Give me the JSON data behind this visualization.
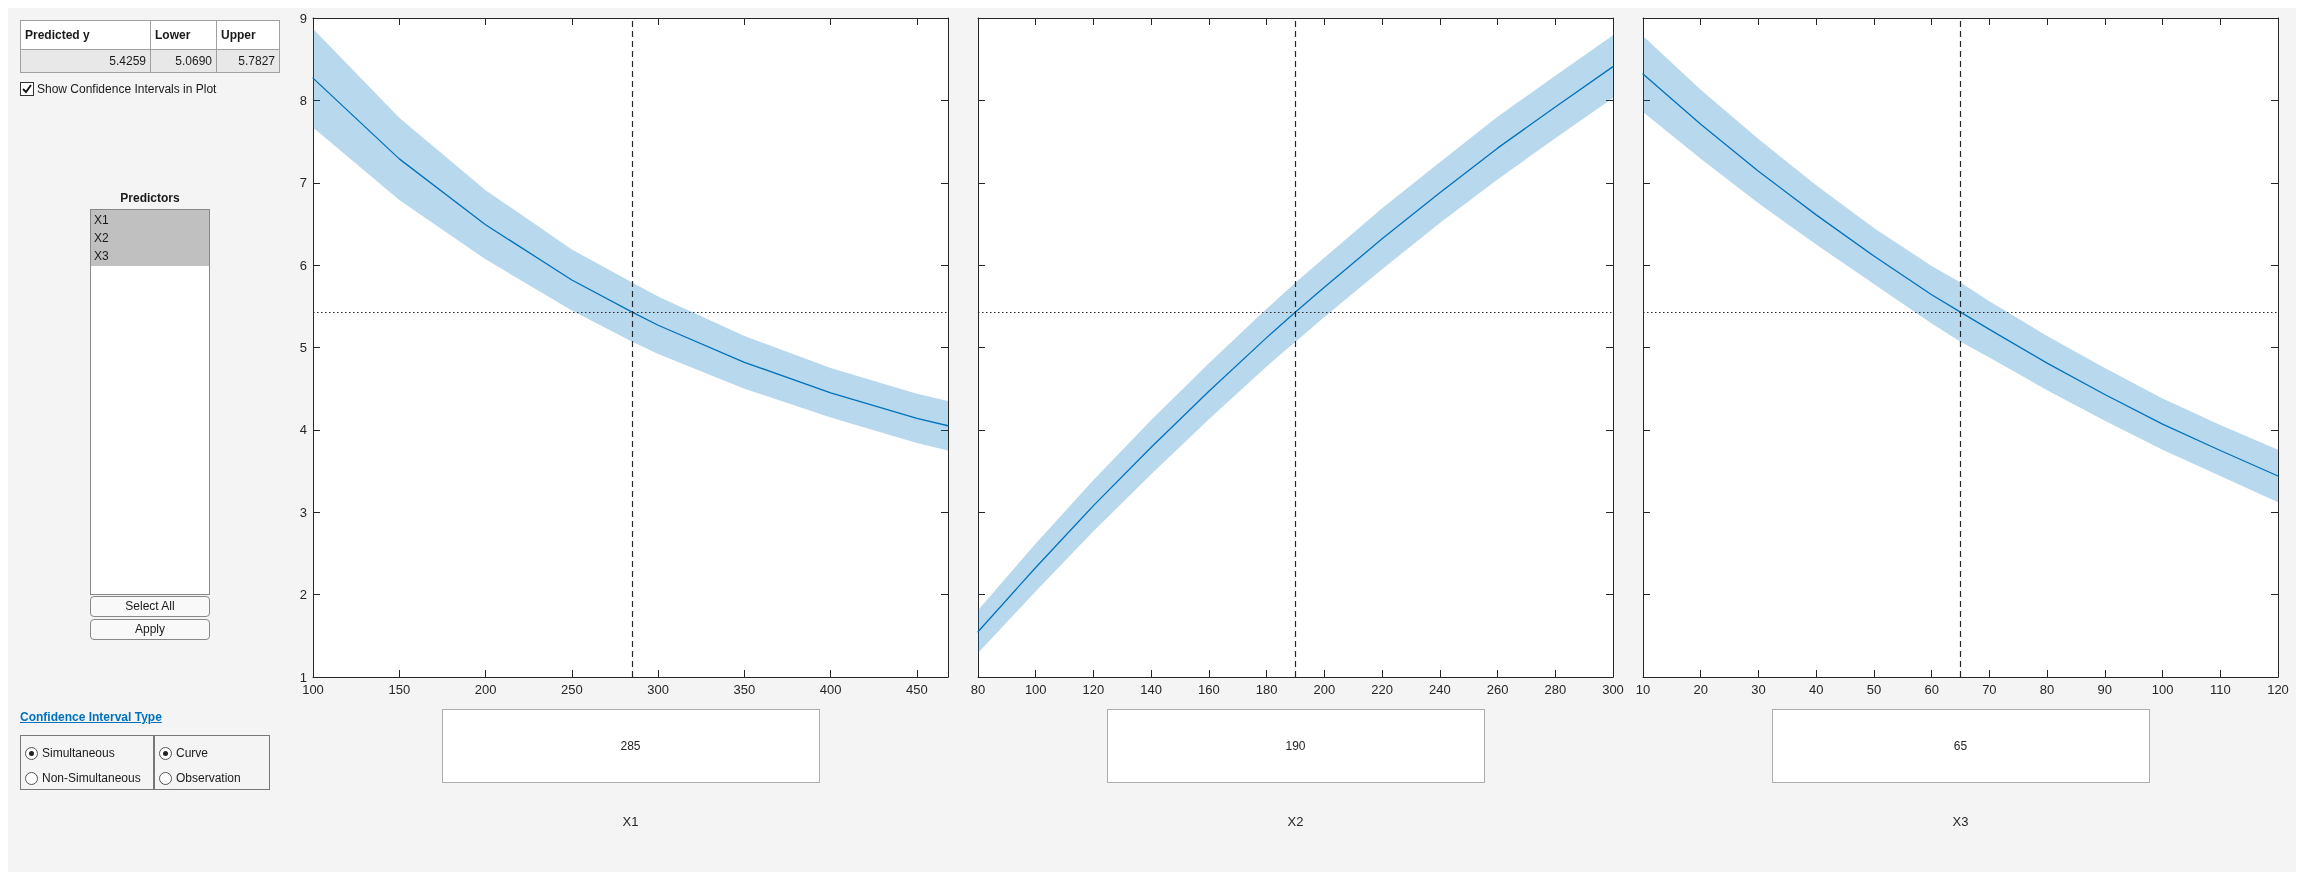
{
  "chart_data": [
    {
      "type": "other",
      "annotations": [
        "Predicted y",
        "Lower",
        "Upper",
        "5.4259",
        "5.0690",
        "5.7827",
        "Show Confidence Intervals in Plot",
        "Predictors",
        "X1",
        "X2",
        "X3",
        "Select All",
        "Apply",
        "Confidence Interval Type",
        "Simultaneous",
        "Non-Simultaneous",
        "Curve",
        "Observation"
      ]
    },
    {
      "type": "line",
      "xlabel": "X1",
      "marker": "none",
      "line_style": "solid",
      "xlim": [
        100,
        468
      ],
      "xticks": [
        100,
        150,
        200,
        250,
        300,
        350,
        400,
        450
      ],
      "ylim": [
        1,
        9
      ],
      "yticks": [
        1,
        2,
        3,
        4,
        5,
        6,
        7,
        8,
        9
      ],
      "series": [
        {
          "color": "#0072bd",
          "x": [
            100,
            150,
            200,
            250,
            285,
            300,
            350,
            400,
            450,
            468
          ],
          "values": [
            8.27,
            7.29,
            6.49,
            5.82,
            5.43,
            5.27,
            4.82,
            4.45,
            4.14,
            4.05
          ],
          "lower": [
            7.67,
            6.79,
            6.07,
            5.45,
            5.07,
            4.92,
            4.5,
            4.15,
            3.84,
            3.75
          ],
          "upper": [
            8.87,
            7.79,
            6.91,
            6.19,
            5.79,
            5.62,
            5.14,
            4.75,
            4.44,
            4.35
          ]
        }
      ],
      "ref_lines": [
        {
          "axis": "x",
          "value": 285,
          "label": "285",
          "color": "#262626",
          "line_style": "dashed"
        },
        {
          "axis": "y",
          "value": 5.4259,
          "color": "#262626",
          "line_style": "dotted"
        }
      ]
    },
    {
      "type": "line",
      "xlabel": "X2",
      "marker": "none",
      "line_style": "solid",
      "tick_labels": "x",
      "xlim": [
        80,
        300
      ],
      "xticks": [
        80,
        100,
        120,
        140,
        160,
        180,
        200,
        220,
        240,
        260,
        280,
        300
      ],
      "ylim": [
        1,
        9
      ],
      "yticks": [
        1,
        2,
        3,
        4,
        5,
        6,
        7,
        8,
        9
      ],
      "series": [
        {
          "color": "#0072bd",
          "x": [
            80,
            100,
            120,
            140,
            160,
            180,
            190,
            200,
            220,
            240,
            260,
            280,
            300
          ],
          "values": [
            1.55,
            2.33,
            3.08,
            3.79,
            4.47,
            5.12,
            5.43,
            5.73,
            6.32,
            6.88,
            7.42,
            7.92,
            8.41
          ],
          "lower": [
            1.29,
            2.04,
            2.77,
            3.46,
            4.13,
            4.77,
            5.07,
            5.37,
            5.95,
            6.51,
            7.04,
            7.54,
            8.03
          ],
          "upper": [
            1.81,
            2.62,
            3.39,
            4.12,
            4.81,
            5.47,
            5.79,
            6.09,
            6.69,
            7.25,
            7.8,
            8.3,
            8.79
          ]
        }
      ],
      "ref_lines": [
        {
          "axis": "x",
          "value": 190,
          "label": "190",
          "color": "#262626",
          "line_style": "dashed"
        },
        {
          "axis": "y",
          "value": 5.4259,
          "color": "#262626",
          "line_style": "dotted"
        }
      ]
    },
    {
      "type": "line",
      "xlabel": "X3",
      "marker": "none",
      "line_style": "solid",
      "tick_labels": "x",
      "xlim": [
        10,
        120
      ],
      "xticks": [
        10,
        20,
        30,
        40,
        50,
        60,
        70,
        80,
        90,
        100,
        110,
        120
      ],
      "ylim": [
        1,
        9
      ],
      "yticks": [
        1,
        2,
        3,
        4,
        5,
        6,
        7,
        8,
        9
      ],
      "series": [
        {
          "color": "#0072bd",
          "x": [
            10,
            20,
            30,
            40,
            50,
            60,
            65,
            70,
            80,
            90,
            100,
            110,
            120
          ],
          "values": [
            8.32,
            7.71,
            7.14,
            6.61,
            6.11,
            5.64,
            5.43,
            5.22,
            4.81,
            4.43,
            4.07,
            3.75,
            3.44
          ],
          "lower": [
            7.86,
            7.29,
            6.75,
            6.25,
            5.77,
            5.29,
            5.07,
            4.88,
            4.48,
            4.11,
            3.76,
            3.44,
            3.12
          ],
          "upper": [
            8.78,
            8.13,
            7.53,
            6.97,
            6.45,
            5.99,
            5.79,
            5.56,
            5.14,
            4.75,
            4.38,
            4.06,
            3.76
          ]
        }
      ],
      "ref_lines": [
        {
          "axis": "x",
          "value": 65,
          "label": "65",
          "color": "#262626",
          "line_style": "dashed"
        },
        {
          "axis": "y",
          "value": 5.4259,
          "color": "#262626",
          "line_style": "dotted"
        }
      ]
    }
  ]
}
